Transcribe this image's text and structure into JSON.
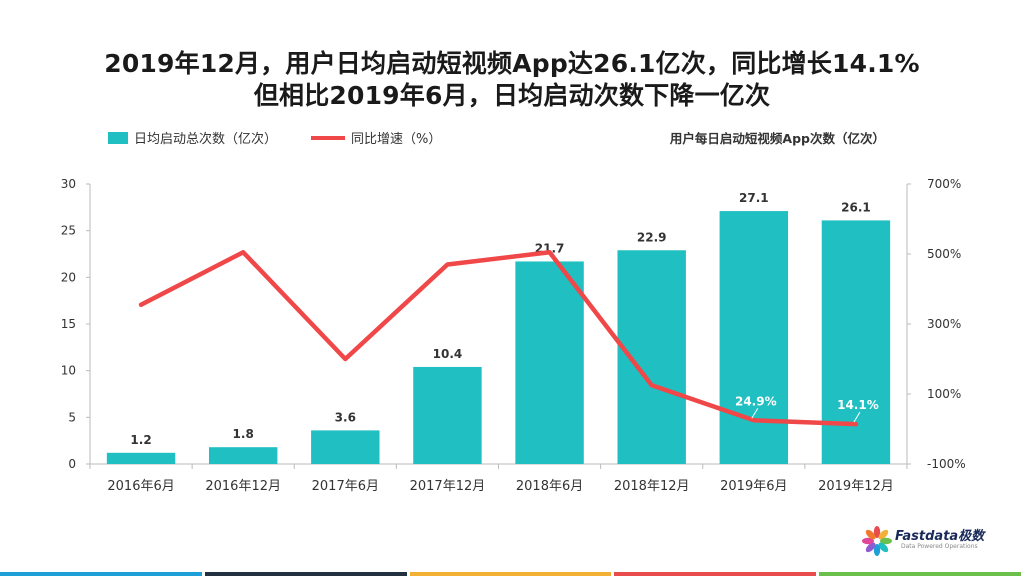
{
  "title_line1": "2019年12月，用户日均启动短视频App达26.1亿次，同比增长14.1%",
  "title_line2": "但相比2019年6月，日均启动次数下降一亿次",
  "legend": {
    "bar_label": "日均启动总次数（亿次）",
    "line_label": "同比增速（%）"
  },
  "subtitle": "用户每日启动短视频App次数（亿次）",
  "logo": {
    "brand": "Fastdata极数",
    "tagline": "Data Powered Operations"
  },
  "colors": {
    "bar": "#1fbfc2",
    "line": "#f04848",
    "footer": [
      "#1e9fd8",
      "#22313f",
      "#f2b134",
      "#e84c4c",
      "#6bbf4b"
    ]
  },
  "chart_data": {
    "type": "bar",
    "categories": [
      "2016年6月",
      "2016年12月",
      "2017年6月",
      "2017年12月",
      "2018年6月",
      "2018年12月",
      "2019年6月",
      "2019年12月"
    ],
    "series": [
      {
        "values": [
          1.2,
          1.8,
          3.6,
          10.4,
          21.7,
          22.9,
          27.1,
          26.1
        ],
        "type": "bar",
        "axis": "left",
        "data_labels": [
          "1.2",
          "1.8",
          "3.6",
          "10.4",
          "21.7",
          "22.9",
          "27.1",
          "26.1"
        ]
      },
      {
        "values": [
          355,
          505,
          200,
          470,
          505,
          125,
          24.9,
          14.1
        ],
        "type": "line",
        "axis": "right",
        "data_labels": [
          "",
          "",
          "",
          "",
          "",
          "",
          "24.9%",
          "14.1%"
        ]
      }
    ],
    "y_left": {
      "min": 0,
      "max": 30,
      "ticks": [
        "0",
        "5",
        "10",
        "15",
        "20",
        "25",
        "30"
      ]
    },
    "y_right": {
      "min": -100,
      "max": 700,
      "ticks": [
        "-100%",
        "100%",
        "300%",
        "500%",
        "700%"
      ]
    },
    "grid": false
  }
}
